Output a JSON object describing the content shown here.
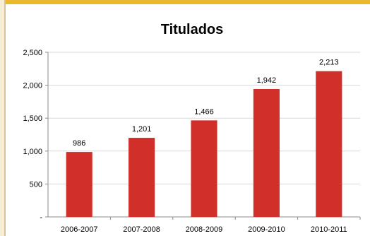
{
  "colors": {
    "bar": "#d1302a",
    "accent_bar": "#e9b82d",
    "grid": "#d9d9d9",
    "axis": "#8c8c8c"
  },
  "chart_data": {
    "type": "bar",
    "title": "Titulados",
    "categories": [
      "2006-2007",
      "2007-2008",
      "2008-2009",
      "2009-2010",
      "2010-2011"
    ],
    "values": [
      986,
      1201,
      1466,
      1942,
      2213
    ],
    "value_labels": [
      "986",
      "1,201",
      "1,466",
      "1,942",
      "2,213"
    ],
    "yticks": [
      {
        "value": 0,
        "label": "-"
      },
      {
        "value": 500,
        "label": "500"
      },
      {
        "value": 1000,
        "label": "1,000"
      },
      {
        "value": 1500,
        "label": "1,500"
      },
      {
        "value": 2000,
        "label": "2,000"
      },
      {
        "value": 2500,
        "label": "2,500"
      }
    ],
    "ylim": [
      0,
      2500
    ],
    "xlabel": "",
    "ylabel": "",
    "grid": true,
    "legend": "none"
  }
}
